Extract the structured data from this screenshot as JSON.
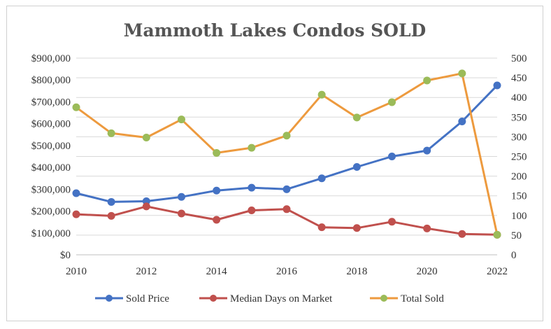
{
  "chart_data": {
    "type": "line",
    "title": "Mammoth Lakes Condos SOLD",
    "x": [
      2010,
      2011,
      2012,
      2013,
      2014,
      2015,
      2016,
      2017,
      2018,
      2019,
      2020,
      2021,
      2022
    ],
    "x_ticks": [
      "2010",
      "2012",
      "2014",
      "2016",
      "2018",
      "2020",
      "2022"
    ],
    "xlim": [
      2010,
      2022
    ],
    "y_left": {
      "ylim": [
        0,
        900000
      ],
      "ticks": [
        "$0",
        "$100,000",
        "$200,000",
        "$300,000",
        "$400,000",
        "$500,000",
        "$600,000",
        "$700,000",
        "$800,000",
        "$900,000"
      ]
    },
    "y_right": {
      "ylim": [
        0,
        500
      ],
      "ticks": [
        "0",
        "50",
        "100",
        "150",
        "200",
        "250",
        "300",
        "350",
        "400",
        "450",
        "500"
      ]
    },
    "series": [
      {
        "name": "Sold Price",
        "axis": "left",
        "color": "#4472C4",
        "values": [
          282000,
          242000,
          245000,
          265000,
          294000,
          307000,
          300000,
          350000,
          402000,
          450000,
          477000,
          610000,
          775000
        ]
      },
      {
        "name": "Median Days on Market",
        "axis": "right",
        "color": "#C0504D",
        "values": [
          103,
          99,
          123,
          105,
          89,
          113,
          116,
          70,
          68,
          84,
          67,
          53,
          51
        ]
      },
      {
        "name": "Total Sold",
        "axis": "right",
        "color": "#ED9A3E",
        "marker_color": "#9BBB59",
        "values": [
          375,
          309,
          298,
          344,
          259,
          272,
          303,
          407,
          349,
          388,
          443,
          461,
          51
        ]
      }
    ],
    "grid": true,
    "legend": "bottom"
  }
}
